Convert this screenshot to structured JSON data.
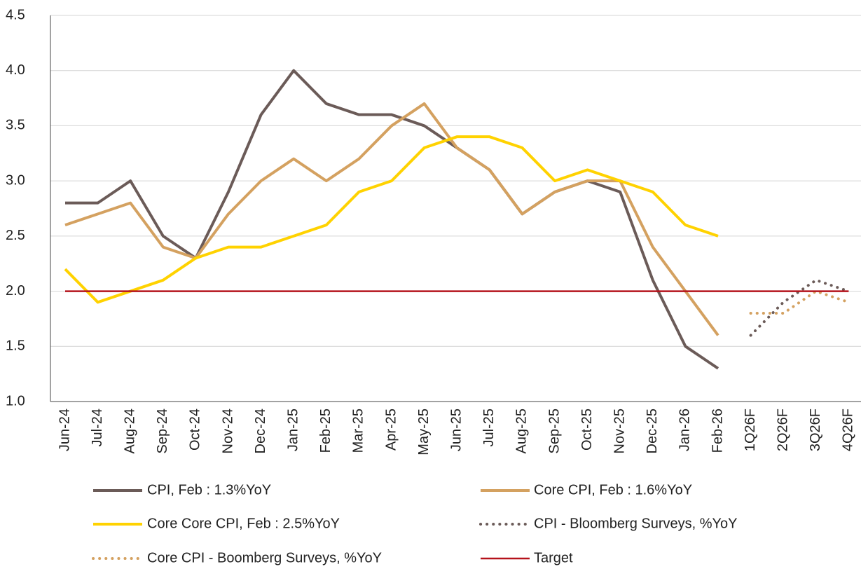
{
  "chart_data": {
    "type": "line",
    "categories": [
      "Jun-24",
      "Jul-24",
      "Aug-24",
      "Sep-24",
      "Oct-24",
      "Nov-24",
      "Dec-24",
      "Jan-25",
      "Feb-25",
      "Mar-25",
      "Apr-25",
      "May-25",
      "Jun-25",
      "Jul-25",
      "Aug-25",
      "Sep-25",
      "Oct-25",
      "Nov-25",
      "Dec-25",
      "Jan-26",
      "Feb-26",
      "1Q26F",
      "2Q26F",
      "3Q26F",
      "4Q26F"
    ],
    "series": [
      {
        "name": "CPI, Feb : 1.3%YoY",
        "color": "#6b5b58",
        "style": "solid",
        "values": [
          2.8,
          2.8,
          3.0,
          2.5,
          2.3,
          2.9,
          3.6,
          4.0,
          3.7,
          3.6,
          3.6,
          3.5,
          3.3,
          3.1,
          2.7,
          2.9,
          3.0,
          2.9,
          2.1,
          1.5,
          1.3,
          null,
          null,
          null,
          null
        ]
      },
      {
        "name": "Core CPI, Feb : 1.6%YoY",
        "color": "#d4a160",
        "style": "solid",
        "values": [
          2.6,
          2.7,
          2.8,
          2.4,
          2.3,
          2.7,
          3.0,
          3.2,
          3.0,
          3.2,
          3.5,
          3.7,
          3.3,
          3.1,
          2.7,
          2.9,
          3.0,
          3.0,
          2.4,
          2.0,
          1.6,
          null,
          null,
          null,
          null
        ]
      },
      {
        "name": "Core Core CPI, Feb : 2.5%YoY",
        "color": "#ffd200",
        "style": "solid",
        "values": [
          2.2,
          1.9,
          2.0,
          2.1,
          2.3,
          2.4,
          2.4,
          2.5,
          2.6,
          2.9,
          3.0,
          3.3,
          3.4,
          3.4,
          3.3,
          3.0,
          3.1,
          3.0,
          2.9,
          2.6,
          2.5,
          null,
          null,
          null,
          null
        ]
      },
      {
        "name": "CPI - Bloomberg Surveys, %YoY",
        "color": "#6b5b58",
        "style": "dotted",
        "values": [
          null,
          null,
          null,
          null,
          null,
          null,
          null,
          null,
          null,
          null,
          null,
          null,
          null,
          null,
          null,
          null,
          null,
          null,
          null,
          null,
          null,
          1.6,
          1.9,
          2.1,
          2.0
        ]
      },
      {
        "name": "Core CPI - Boomberg Surveys, %YoY",
        "color": "#d4a160",
        "style": "dotted",
        "values": [
          null,
          null,
          null,
          null,
          null,
          null,
          null,
          null,
          null,
          null,
          null,
          null,
          null,
          null,
          null,
          null,
          null,
          null,
          null,
          null,
          null,
          1.8,
          1.8,
          2.0,
          1.9
        ]
      },
      {
        "name": "Target",
        "color": "#b5121b",
        "style": "thin",
        "values": [
          2.0,
          2.0,
          2.0,
          2.0,
          2.0,
          2.0,
          2.0,
          2.0,
          2.0,
          2.0,
          2.0,
          2.0,
          2.0,
          2.0,
          2.0,
          2.0,
          2.0,
          2.0,
          2.0,
          2.0,
          2.0,
          2.0,
          2.0,
          2.0,
          2.0
        ]
      }
    ],
    "ylim": [
      1.0,
      4.5
    ],
    "yticks": [
      {
        "value": 1.0,
        "label": "1.0"
      },
      {
        "value": 1.5,
        "label": "1.5"
      },
      {
        "value": 2.0,
        "label": "2.0"
      },
      {
        "value": 2.5,
        "label": "2.5"
      },
      {
        "value": 3.0,
        "label": "3.0"
      },
      {
        "value": 3.5,
        "label": "3.5"
      },
      {
        "value": 4.0,
        "label": "4.0"
      },
      {
        "value": 4.5,
        "label": "4.5"
      }
    ],
    "grid": true
  }
}
